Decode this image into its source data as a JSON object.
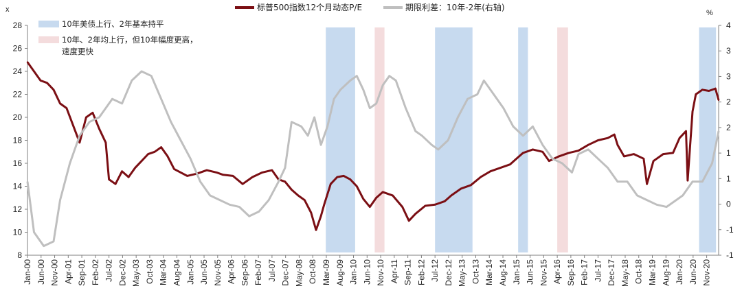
{
  "chart_data": {
    "type": "line",
    "left_unit": "x",
    "right_unit": "%",
    "ylim_left": [
      8,
      28
    ],
    "ylim_right": [
      -1,
      4
    ],
    "yticks_left": [
      "8",
      "10",
      "12",
      "14",
      "16",
      "18",
      "20",
      "22",
      "24",
      "26",
      "28"
    ],
    "yticks_right": [
      "-1",
      "-1",
      "0",
      "1",
      "1",
      "2",
      "2",
      "3",
      "3",
      "4"
    ],
    "x_tick_labels": [
      "Jan-00",
      "Jun-00",
      "Nov-00",
      "Apr-01",
      "Sep-01",
      "Feb-02",
      "Jul-02",
      "Dec-02",
      "May-03",
      "Oct-03",
      "Mar-04",
      "Aug-04",
      "Jan-05",
      "Jun-05",
      "Nov-05",
      "Apr-06",
      "Sep-06",
      "Feb-07",
      "Jul-07",
      "Dec-07",
      "May-08",
      "Oct-08",
      "Mar-09",
      "Aug-09",
      "Jan-10",
      "Jun-10",
      "Nov-10",
      "Apr-11",
      "Sep-11",
      "Feb-12",
      "Jul-12",
      "Dec-12",
      "May-13",
      "Oct-13",
      "Mar-14",
      "Aug-14",
      "Jan-15",
      "Jun-15",
      "Nov-15",
      "Apr-16",
      "Sep-16",
      "Feb-17",
      "Jul-17",
      "Dec-17",
      "May-18",
      "Oct-18",
      "Mar-19",
      "Aug-19",
      "Jan-20",
      "Jun-20",
      "Nov-20"
    ],
    "legend": {
      "series1": "标普500指数12个月动态P/E",
      "series2": "期限利差：10年-2年(右轴)",
      "band_blue": "10年美债上行、2年基本持平",
      "band_pink_line1": "10年、2年均上行，但10年幅度更高，",
      "band_pink_line2": "速度更快"
    },
    "colors": {
      "pe": "#7B0F14",
      "spread": "#BFBFBF",
      "band_blue": "#C7DAEF",
      "band_pink": "#F4DCDD"
    },
    "shaded_periods": [
      {
        "type": "blue",
        "start": 2009.15,
        "end": 2010.05
      },
      {
        "type": "pink",
        "start": 2010.65,
        "end": 2010.95
      },
      {
        "type": "blue",
        "start": 2012.5,
        "end": 2013.65
      },
      {
        "type": "blue",
        "start": 2015.05,
        "end": 2015.35
      },
      {
        "type": "pink",
        "start": 2016.25,
        "end": 2016.58
      },
      {
        "type": "blue",
        "start": 2020.6,
        "end": 2021.12
      }
    ],
    "series": [
      {
        "name": "标普500指数12个月动态P/E",
        "axis": "left",
        "x": [
          2000.0,
          2000.2,
          2000.4,
          2000.6,
          2000.8,
          2001.0,
          2001.2,
          2001.4,
          2001.6,
          2001.8,
          2002.0,
          2002.2,
          2002.4,
          2002.5,
          2002.7,
          2002.9,
          2003.1,
          2003.3,
          2003.5,
          2003.7,
          2003.9,
          2004.1,
          2004.3,
          2004.5,
          2004.7,
          2004.9,
          2005.2,
          2005.5,
          2005.8,
          2006.0,
          2006.3,
          2006.6,
          2006.9,
          2007.2,
          2007.5,
          2007.7,
          2007.9,
          2008.1,
          2008.3,
          2008.5,
          2008.7,
          2008.85,
          2009.0,
          2009.1,
          2009.3,
          2009.5,
          2009.7,
          2009.9,
          2010.1,
          2010.3,
          2010.5,
          2010.7,
          2010.9,
          2011.2,
          2011.5,
          2011.7,
          2011.9,
          2012.2,
          2012.5,
          2012.8,
          2013.0,
          2013.3,
          2013.6,
          2013.9,
          2014.2,
          2014.5,
          2014.8,
          2015.0,
          2015.2,
          2015.5,
          2015.8,
          2016.0,
          2016.3,
          2016.6,
          2016.9,
          2017.2,
          2017.5,
          2017.8,
          2018.0,
          2018.1,
          2018.3,
          2018.6,
          2018.9,
          2019.0,
          2019.2,
          2019.5,
          2019.8,
          2020.0,
          2020.2,
          2020.25,
          2020.4,
          2020.5,
          2020.7,
          2020.9,
          2021.1,
          2021.2
        ],
        "values": [
          24.8,
          24.0,
          23.2,
          23.0,
          22.4,
          21.2,
          20.8,
          19.3,
          17.8,
          20.0,
          20.4,
          19.0,
          17.8,
          14.6,
          14.2,
          15.3,
          14.8,
          15.6,
          16.2,
          16.8,
          17.0,
          17.4,
          16.6,
          15.5,
          15.2,
          14.9,
          15.1,
          15.4,
          15.2,
          15.0,
          14.9,
          14.2,
          14.8,
          15.2,
          15.4,
          14.6,
          14.4,
          13.7,
          13.2,
          12.8,
          11.7,
          10.2,
          11.4,
          12.4,
          14.2,
          14.8,
          14.9,
          14.6,
          14.0,
          12.9,
          12.2,
          13.0,
          13.5,
          13.2,
          12.2,
          11.0,
          11.6,
          12.3,
          12.4,
          12.7,
          13.2,
          13.8,
          14.1,
          14.8,
          15.3,
          15.6,
          15.9,
          16.4,
          16.9,
          17.2,
          17.0,
          16.2,
          16.6,
          16.9,
          17.1,
          17.6,
          18.0,
          18.2,
          18.5,
          17.6,
          16.6,
          16.8,
          16.4,
          14.2,
          16.2,
          16.8,
          16.9,
          18.2,
          18.8,
          14.5,
          20.5,
          22.0,
          22.4,
          22.3,
          22.5,
          21.5
        ]
      },
      {
        "name": "期限利差：10年-2年(右轴)",
        "axis": "right",
        "x": [
          2000.0,
          2000.2,
          2000.5,
          2000.8,
          2001.0,
          2001.3,
          2001.6,
          2001.9,
          2002.2,
          2002.6,
          2002.9,
          2003.2,
          2003.5,
          2003.8,
          2004.1,
          2004.4,
          2004.7,
          2005.0,
          2005.3,
          2005.6,
          2005.9,
          2006.2,
          2006.5,
          2006.8,
          2007.1,
          2007.4,
          2007.7,
          2007.9,
          2008.1,
          2008.4,
          2008.6,
          2008.8,
          2009.0,
          2009.2,
          2009.4,
          2009.6,
          2009.9,
          2010.1,
          2010.3,
          2010.5,
          2010.7,
          2010.9,
          2011.1,
          2011.3,
          2011.6,
          2011.9,
          2012.1,
          2012.4,
          2012.6,
          2012.9,
          2013.2,
          2013.5,
          2013.8,
          2014.0,
          2014.3,
          2014.6,
          2014.9,
          2015.2,
          2015.5,
          2015.8,
          2016.1,
          2016.4,
          2016.7,
          2016.9,
          2017.2,
          2017.5,
          2017.8,
          2018.1,
          2018.4,
          2018.7,
          2019.0,
          2019.3,
          2019.6,
          2019.9,
          2020.1,
          2020.4,
          2020.7,
          2021.0,
          2021.2
        ],
        "values": [
          0.6,
          -0.5,
          -0.8,
          -0.7,
          0.2,
          1.0,
          1.6,
          1.9,
          2.0,
          2.4,
          2.3,
          2.8,
          3.0,
          2.9,
          2.4,
          1.9,
          1.5,
          1.1,
          0.6,
          0.3,
          0.2,
          0.1,
          0.05,
          -0.15,
          -0.05,
          0.2,
          0.6,
          0.9,
          1.9,
          1.8,
          1.6,
          2.0,
          1.4,
          1.8,
          2.4,
          2.6,
          2.8,
          2.9,
          2.6,
          2.2,
          2.3,
          2.7,
          2.9,
          2.8,
          2.2,
          1.7,
          1.6,
          1.4,
          1.3,
          1.5,
          2.0,
          2.4,
          2.5,
          2.8,
          2.5,
          2.2,
          1.8,
          1.6,
          1.8,
          1.4,
          1.1,
          1.0,
          0.8,
          1.2,
          1.3,
          1.1,
          0.9,
          0.6,
          0.6,
          0.3,
          0.2,
          0.1,
          0.05,
          0.2,
          0.3,
          0.6,
          0.6,
          1.0,
          1.7
        ]
      }
    ]
  }
}
